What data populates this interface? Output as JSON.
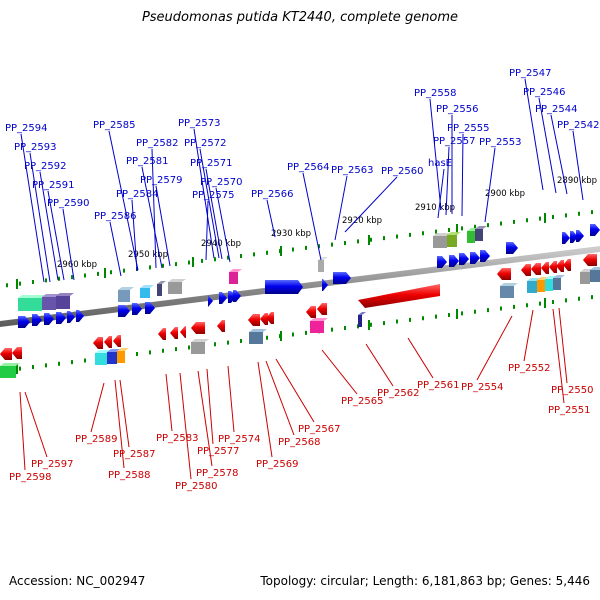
{
  "title": "Pseudomonas putida KT2440, complete genome",
  "footer": {
    "accession": "Accession: NC_002947",
    "summary": "Topology: circular; Length: 6,181,863 bp; Genes: 5,446"
  },
  "colors": {
    "forward": "#0000ee",
    "reverse": "#ee0000",
    "backbone": "#888888",
    "tick": "#008800",
    "label_forward": "#0000cc",
    "label_reverse": "#cc0000"
  },
  "ruler": [
    "2890 kbp",
    "2900 kbp",
    "2910 kbp",
    "2920 kbp",
    "2930 kbp",
    "2940 kbp",
    "2950 kbp",
    "2960 kbp"
  ],
  "forward_labels": [
    "PP_2547",
    "PP_2546",
    "PP_2544",
    "PP_2542",
    "PP_2558",
    "PP_2556",
    "PP_2555",
    "PP_2557",
    "PP_2553",
    "hasE",
    "PP_2560",
    "PP_2563",
    "PP_2564",
    "PP_2566",
    "PP_2573",
    "PP_2572",
    "PP_2571",
    "PP_2570",
    "PP_2575",
    "PP_2585",
    "PP_2582",
    "PP_2581",
    "PP_2579",
    "PP_2584",
    "PP_2586",
    "PP_2594",
    "PP_2593",
    "PP_2592",
    "PP_2591",
    "PP_2590"
  ],
  "reverse_labels": [
    "PP_2552",
    "PP_2550",
    "PP_2551",
    "PP_2554",
    "PP_2561",
    "PP_2562",
    "PP_2565",
    "PP_2567",
    "PP_2568",
    "PP_2569",
    "PP_2574",
    "PP_2577",
    "PP_2578",
    "PP_2580",
    "PP_2583",
    "PP_2587",
    "PP_2588",
    "PP_2589",
    "PP_2597",
    "PP_2598"
  ]
}
